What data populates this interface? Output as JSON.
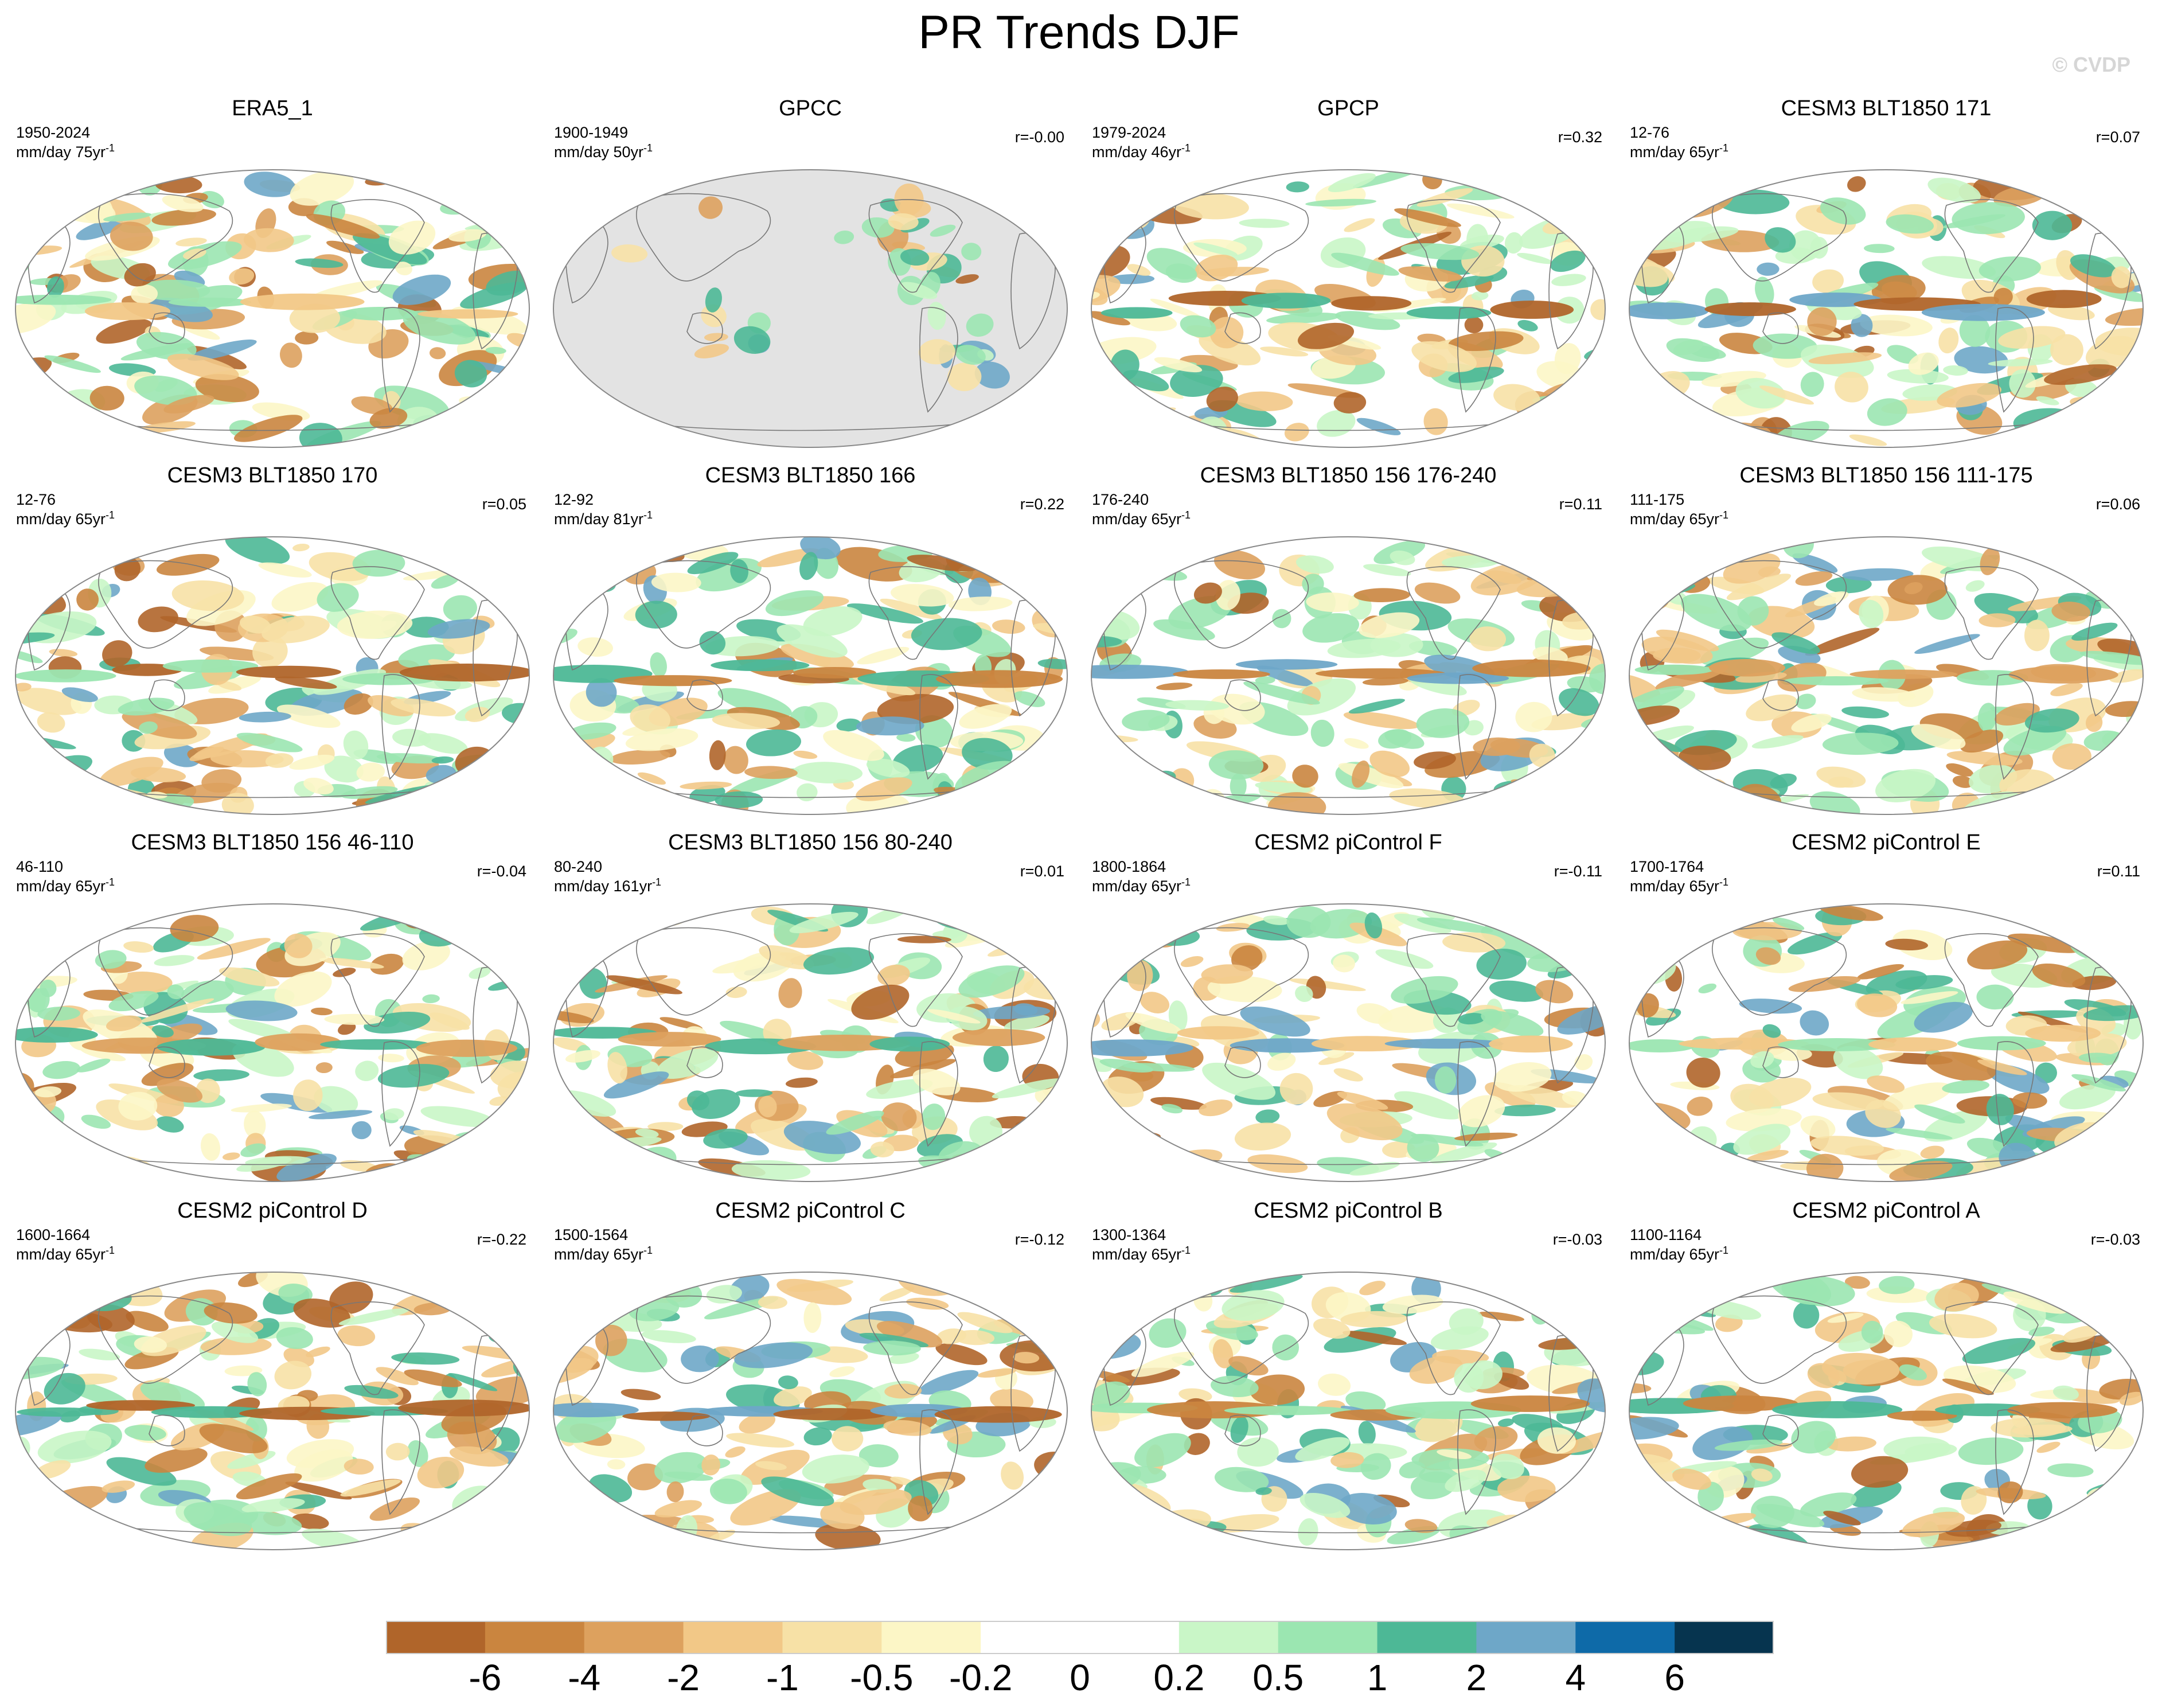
{
  "title": "PR Trends DJF",
  "watermark": "© CVDP",
  "chart_data": {
    "type": "heatmap",
    "title": "PR Trends DJF",
    "projection": "Robinson (Pacific-centered)",
    "colorbar": {
      "labels": [
        "-6",
        "-4",
        "-2",
        "-1",
        "-0.5",
        "-0.2",
        "0",
        "0.2",
        "0.5",
        "1",
        "2",
        "4",
        "6"
      ],
      "colors": [
        "#b0652a",
        "#ca853f",
        "#dda15e",
        "#f2c887",
        "#f7e1a6",
        "#fcf6c6",
        "#ffffff",
        "#ffffff",
        "#c9f6c7",
        "#9be6b1",
        "#4db896",
        "#6ea7c8",
        "#0e6aa8",
        "#06344f"
      ]
    },
    "panels": [
      {
        "name": "ERA5_1",
        "period": "1950-2024",
        "units": "mm/day 75yr",
        "r": ""
      },
      {
        "name": "GPCC",
        "period": "1900-1949",
        "units": "mm/day 50yr",
        "r": "r=-0.00"
      },
      {
        "name": "GPCP",
        "period": "1979-2024",
        "units": "mm/day 46yr",
        "r": "r=0.32"
      },
      {
        "name": "CESM3 BLT1850 171",
        "period": "12-76",
        "units": "mm/day 65yr",
        "r": "r=0.07"
      },
      {
        "name": "CESM3 BLT1850 170",
        "period": "12-76",
        "units": "mm/day 65yr",
        "r": "r=0.05"
      },
      {
        "name": "CESM3 BLT1850 166",
        "period": "12-92",
        "units": "mm/day 81yr",
        "r": "r=0.22"
      },
      {
        "name": "CESM3 BLT1850 156 176-240",
        "period": "176-240",
        "units": "mm/day 65yr",
        "r": "r=0.11"
      },
      {
        "name": "CESM3 BLT1850 156 111-175",
        "period": "111-175",
        "units": "mm/day 65yr",
        "r": "r=0.06"
      },
      {
        "name": "CESM3 BLT1850 156 46-110",
        "period": "46-110",
        "units": "mm/day 65yr",
        "r": "r=-0.04"
      },
      {
        "name": "CESM3 BLT1850 156 80-240",
        "period": "80-240",
        "units": "mm/day 161yr",
        "r": "r=0.01"
      },
      {
        "name": "CESM2 piControl F",
        "period": "1800-1864",
        "units": "mm/day 65yr",
        "r": "r=-0.11"
      },
      {
        "name": "CESM2 piControl E",
        "period": "1700-1764",
        "units": "mm/day 65yr",
        "r": "r=0.11"
      },
      {
        "name": "CESM2 piControl D",
        "period": "1600-1664",
        "units": "mm/day 65yr",
        "r": "r=-0.22"
      },
      {
        "name": "CESM2 piControl C",
        "period": "1500-1564",
        "units": "mm/day 65yr",
        "r": "r=-0.12"
      },
      {
        "name": "CESM2 piControl B",
        "period": "1300-1364",
        "units": "mm/day 65yr",
        "r": "r=-0.03"
      },
      {
        "name": "CESM2 piControl A",
        "period": "1100-1164",
        "units": "mm/day 65yr",
        "r": "r=-0.03"
      }
    ]
  }
}
